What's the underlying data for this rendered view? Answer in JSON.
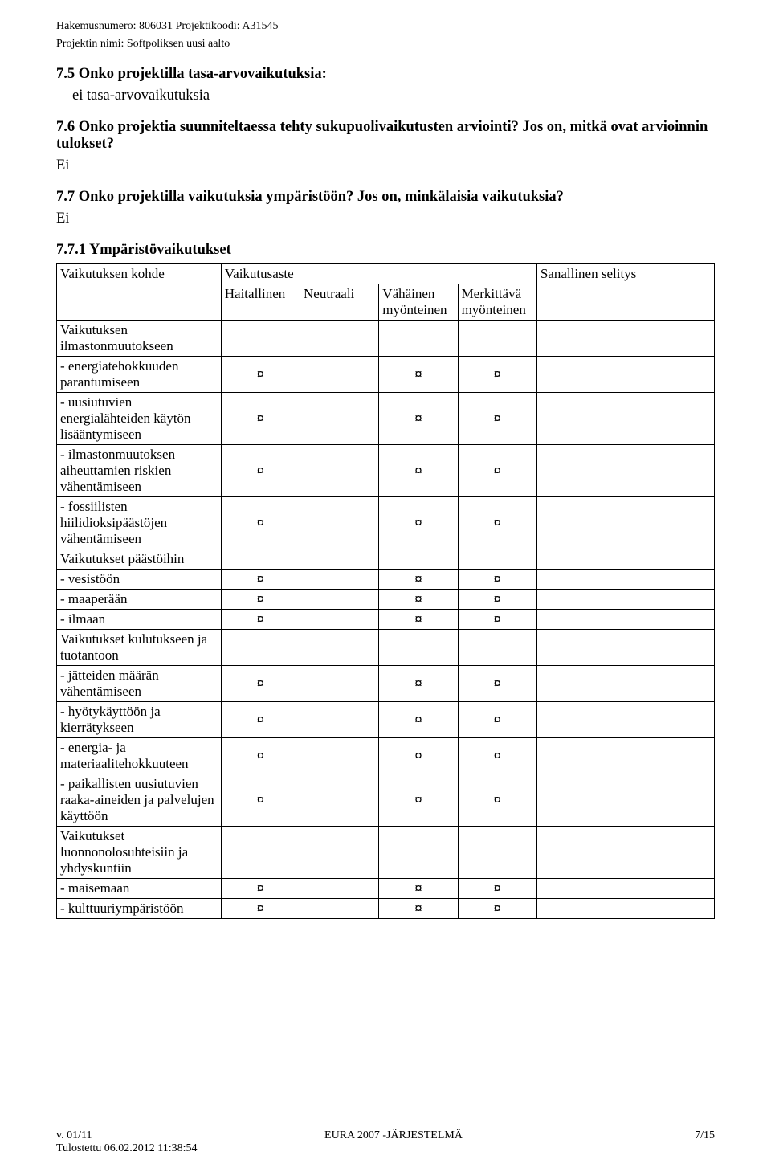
{
  "header": {
    "line1": "Hakemusnumero: 806031  Projektikoodi: A31545",
    "line2": "Projektin nimi: Softpoliksen uusi aalto"
  },
  "s75": {
    "heading": "7.5 Onko projektilla tasa-arvovaikutuksia:",
    "answer": "ei tasa-arvovaikutuksia"
  },
  "s76": {
    "heading": "7.6 Onko projektia suunniteltaessa tehty sukupuolivaikutusten arviointi? Jos on, mitkä ovat arvioinnin tulokset?",
    "answer": "Ei"
  },
  "s77": {
    "heading": "7.7 Onko projektilla vaikutuksia ympäristöön? Jos on, minkälaisia vaikutuksia?",
    "answer": "Ei"
  },
  "s771_title": "7.7.1 Ympäristövaikutukset",
  "table": {
    "corner": "Vaikutuksen kohde",
    "degree_header": "Vaikutusaste",
    "explain_header": "Sanallinen selitys",
    "cols": [
      "Haitallinen",
      "Neutraali",
      "Vähäinen myönteinen",
      "Merkittävä myönteinen"
    ],
    "mark": "¤",
    "rows": [
      {
        "label": "Vaikutuksen ilmastonmuutokseen",
        "type": "group"
      },
      {
        "label": "- energiatehokkuuden parantumiseen",
        "type": "item",
        "marks": [
          1,
          0,
          1,
          1
        ]
      },
      {
        "label": "- uusiutuvien energialähteiden käytön lisääntymiseen",
        "type": "item",
        "marks": [
          1,
          0,
          1,
          1
        ]
      },
      {
        "label": "- ilmastonmuutoksen aiheuttamien riskien vähentämiseen",
        "type": "item",
        "marks": [
          1,
          0,
          1,
          1
        ]
      },
      {
        "label": "- fossiilisten hiilidioksipäästöjen vähentämiseen",
        "type": "item",
        "marks": [
          1,
          0,
          1,
          1
        ]
      },
      {
        "label": "Vaikutukset päästöihin",
        "type": "group"
      },
      {
        "label": "- vesistöön",
        "type": "item",
        "marks": [
          1,
          0,
          1,
          1
        ]
      },
      {
        "label": "- maaperään",
        "type": "item",
        "marks": [
          1,
          0,
          1,
          1
        ]
      },
      {
        "label": "- ilmaan",
        "type": "item",
        "marks": [
          1,
          0,
          1,
          1
        ]
      },
      {
        "label": "Vaikutukset kulutukseen ja tuotantoon",
        "type": "group"
      },
      {
        "label": "- jätteiden määrän vähentämiseen",
        "type": "item",
        "marks": [
          1,
          0,
          1,
          1
        ]
      },
      {
        "label": "- hyötykäyttöön ja kierrätykseen",
        "type": "item",
        "marks": [
          1,
          0,
          1,
          1
        ]
      },
      {
        "label": "- energia- ja materiaalitehokkuuteen",
        "type": "item",
        "marks": [
          1,
          0,
          1,
          1
        ]
      },
      {
        "label": "- paikallisten uusiutuvien raaka-aineiden ja palvelujen käyttöön",
        "type": "item",
        "marks": [
          1,
          0,
          1,
          1
        ]
      },
      {
        "label": "Vaikutukset luonnonolosuhteisiin ja yhdyskuntiin",
        "type": "group"
      },
      {
        "label": "- maisemaan",
        "type": "item",
        "marks": [
          1,
          0,
          1,
          1
        ]
      },
      {
        "label": "- kulttuuriympäristöön",
        "type": "item",
        "marks": [
          1,
          0,
          1,
          1
        ]
      }
    ]
  },
  "footer": {
    "left": "v. 01/11",
    "center": "EURA 2007 -JÄRJESTELMÄ",
    "right": "7/15",
    "printed": "Tulostettu 06.02.2012 11:38:54"
  },
  "col_widths": {
    "label": "25%",
    "deg": "12%",
    "explain": "27%"
  }
}
